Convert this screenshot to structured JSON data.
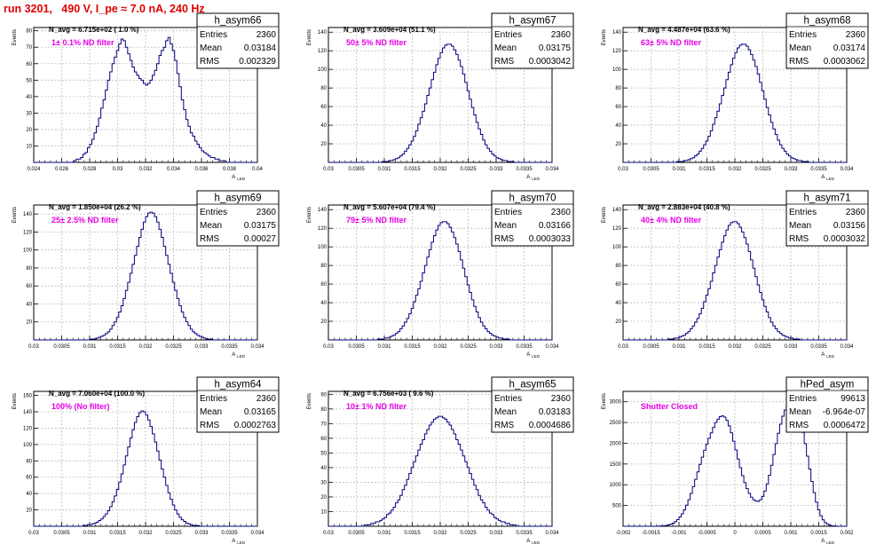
{
  "title": "run 3201,   490 V, I_pe ≈ 7.0 nA, 240 Hz",
  "colors": {
    "histogram": "#00007f",
    "annotation": "#e600e6",
    "title": "#e00000",
    "grid": "#bdbdbd"
  },
  "chart_data": [
    {
      "type": "bar",
      "name": "h_asym66",
      "navg": "N_avg = 6.715e+02 ( 1.0 %)",
      "annotation": "1± 0.1% ND filter",
      "stats": {
        "entries": "2360",
        "mean": "0.03184",
        "rms": "0.002329"
      },
      "xlim": [
        0.024,
        0.04
      ],
      "ylim": [
        0,
        82
      ],
      "xticks": [
        "0.024",
        "0.026",
        "0.028",
        "0.03",
        "0.032",
        "0.034",
        "0.036",
        "0.038",
        "0.04"
      ],
      "yticks": [
        "10",
        "20",
        "30",
        "40",
        "50",
        "60",
        "70",
        "80"
      ],
      "xlabel": "A",
      "xlabel_sub": "LED",
      "ylabel": "Events",
      "bins": 100,
      "values": [
        0,
        0,
        0,
        0,
        0,
        0,
        0,
        0,
        0,
        0,
        0,
        0,
        0,
        0,
        0,
        0,
        0,
        0,
        1,
        2,
        2,
        3,
        5,
        6,
        9,
        11,
        14,
        18,
        22,
        27,
        33,
        38,
        44,
        50,
        55,
        60,
        64,
        68,
        72,
        75,
        74,
        70,
        66,
        62,
        58,
        55,
        53,
        51,
        50,
        48,
        47,
        48,
        50,
        53,
        56,
        60,
        65,
        68,
        70,
        74,
        76,
        72,
        68,
        62,
        54,
        46,
        38,
        32,
        26,
        22,
        18,
        16,
        13,
        11,
        9,
        7,
        6,
        5,
        4,
        3,
        3,
        2,
        2,
        1,
        1,
        1,
        0,
        0,
        0,
        0,
        0,
        0,
        0,
        0,
        0,
        0,
        0,
        0,
        0,
        0
      ]
    },
    {
      "type": "bar",
      "name": "h_asym67",
      "navg": "N_avg = 3.609e+04 (51.1 %)",
      "annotation": "50± 5% ND filter",
      "stats": {
        "entries": "2360",
        "mean": "0.03175",
        "rms": "0.0003042"
      },
      "xlim": [
        0.03,
        0.034
      ],
      "ylim": [
        0,
        145
      ],
      "xticks": [
        "0.03",
        "0.0305",
        "0.031",
        "0.0315",
        "0.032",
        "0.0325",
        "0.033",
        "0.0335",
        "0.034"
      ],
      "yticks": [
        "20",
        "40",
        "60",
        "80",
        "100",
        "120",
        "140"
      ],
      "xlabel": "A",
      "xlabel_sub": "LED",
      "ylabel": "Events",
      "bins": 100,
      "values": [
        0,
        0,
        0,
        0,
        0,
        0,
        0,
        0,
        0,
        0,
        0,
        0,
        0,
        0,
        0,
        0,
        0,
        0,
        0,
        0,
        0,
        0,
        0,
        0,
        1,
        1,
        1,
        2,
        2,
        3,
        4,
        5,
        7,
        9,
        12,
        15,
        19,
        23,
        28,
        34,
        41,
        48,
        55,
        63,
        72,
        80,
        89,
        97,
        105,
        112,
        118,
        123,
        126,
        127,
        127,
        125,
        121,
        116,
        110,
        103,
        95,
        86,
        77,
        68,
        59,
        51,
        43,
        36,
        30,
        24,
        19,
        15,
        12,
        9,
        7,
        5,
        4,
        3,
        2,
        2,
        1,
        1,
        1,
        0,
        0,
        0,
        0,
        0,
        0,
        0,
        0,
        0,
        0,
        0,
        0,
        0,
        0,
        0,
        0,
        0
      ]
    },
    {
      "type": "bar",
      "name": "h_asym68",
      "navg": "N_avg = 4.487e+04 (63.6 %)",
      "annotation": "63± 5% ND filter",
      "stats": {
        "entries": "2360",
        "mean": "0.03174",
        "rms": "0.0003062"
      },
      "xlim": [
        0.03,
        0.034
      ],
      "ylim": [
        0,
        145
      ],
      "xticks": [
        "0.03",
        "0.0305",
        "0.031",
        "0.0315",
        "0.032",
        "0.0325",
        "0.033",
        "0.0335",
        "0.034"
      ],
      "yticks": [
        "20",
        "40",
        "60",
        "80",
        "100",
        "120",
        "140"
      ],
      "xlabel": "A",
      "xlabel_sub": "LED",
      "ylabel": "Events",
      "bins": 100,
      "values": [
        0,
        0,
        0,
        0,
        0,
        0,
        0,
        0,
        0,
        0,
        0,
        0,
        0,
        0,
        0,
        0,
        0,
        0,
        0,
        0,
        0,
        0,
        0,
        0,
        1,
        1,
        1,
        2,
        2,
        3,
        4,
        5,
        7,
        9,
        12,
        15,
        19,
        23,
        28,
        34,
        41,
        48,
        55,
        63,
        72,
        80,
        89,
        97,
        105,
        112,
        118,
        123,
        126,
        127,
        127,
        125,
        121,
        116,
        110,
        103,
        95,
        86,
        77,
        68,
        59,
        51,
        43,
        36,
        30,
        24,
        19,
        15,
        12,
        9,
        7,
        5,
        4,
        3,
        2,
        2,
        1,
        1,
        1,
        0,
        0,
        0,
        0,
        0,
        0,
        0,
        0,
        0,
        0,
        0,
        0,
        0,
        0,
        0,
        0,
        0
      ]
    },
    {
      "type": "bar",
      "name": "h_asym69",
      "navg": "N_avg = 1.850e+04 (26.2 %)",
      "annotation": "25± 2.5% ND filter",
      "stats": {
        "entries": "2360",
        "mean": "0.03175",
        "rms": "0.00027"
      },
      "xlim": [
        0.03,
        0.034
      ],
      "ylim": [
        0,
        150
      ],
      "xticks": [
        "0.03",
        "0.0305",
        "0.031",
        "0.0315",
        "0.032",
        "0.0325",
        "0.033",
        "0.0335",
        "0.034"
      ],
      "yticks": [
        "20",
        "40",
        "60",
        "80",
        "100",
        "120",
        "140"
      ],
      "xlabel": "A",
      "xlabel_sub": "LED",
      "ylabel": "Events",
      "bins": 100,
      "values": [
        0,
        0,
        0,
        0,
        0,
        0,
        0,
        0,
        0,
        0,
        0,
        0,
        0,
        0,
        0,
        0,
        0,
        0,
        0,
        0,
        0,
        0,
        0,
        0,
        0,
        1,
        1,
        1,
        2,
        3,
        4,
        5,
        7,
        9,
        12,
        16,
        20,
        25,
        31,
        38,
        46,
        55,
        64,
        74,
        84,
        94,
        104,
        114,
        123,
        131,
        137,
        141,
        142,
        141,
        137,
        131,
        123,
        114,
        104,
        94,
        84,
        74,
        64,
        55,
        46,
        38,
        31,
        25,
        20,
        16,
        12,
        9,
        7,
        5,
        4,
        3,
        2,
        1,
        1,
        1,
        0,
        0,
        0,
        0,
        0,
        0,
        0,
        0,
        0,
        0,
        0,
        0,
        0,
        0,
        0,
        0,
        0,
        0,
        0,
        0
      ]
    },
    {
      "type": "bar",
      "name": "h_asym70",
      "navg": "N_avg = 5.607e+04 (79.4 %)",
      "annotation": "79± 5% ND filter",
      "stats": {
        "entries": "2360",
        "mean": "0.03166",
        "rms": "0.0003033"
      },
      "xlim": [
        0.03,
        0.034
      ],
      "ylim": [
        0,
        145
      ],
      "xticks": [
        "0.03",
        "0.0305",
        "0.031",
        "0.0315",
        "0.032",
        "0.0325",
        "0.033",
        "0.0335",
        "0.034"
      ],
      "yticks": [
        "20",
        "40",
        "60",
        "80",
        "100",
        "120",
        "140"
      ],
      "xlabel": "A",
      "xlabel_sub": "LED",
      "ylabel": "Events",
      "bins": 100,
      "values": [
        0,
        0,
        0,
        0,
        0,
        0,
        0,
        0,
        0,
        0,
        0,
        0,
        0,
        0,
        0,
        0,
        0,
        0,
        0,
        0,
        0,
        0,
        1,
        1,
        1,
        2,
        2,
        3,
        4,
        5,
        7,
        9,
        12,
        15,
        19,
        23,
        28,
        34,
        41,
        48,
        55,
        63,
        72,
        80,
        89,
        97,
        105,
        112,
        118,
        123,
        126,
        127,
        127,
        125,
        121,
        116,
        110,
        103,
        95,
        86,
        77,
        68,
        59,
        51,
        43,
        36,
        30,
        24,
        19,
        15,
        12,
        9,
        7,
        5,
        4,
        3,
        2,
        2,
        1,
        1,
        1,
        0,
        0,
        0,
        0,
        0,
        0,
        0,
        0,
        0,
        0,
        0,
        0,
        0,
        0,
        0,
        0,
        0,
        0,
        0
      ]
    },
    {
      "type": "bar",
      "name": "h_asym71",
      "navg": "N_avg = 2.883e+04 (40.8 %)",
      "annotation": "40± 4% ND filter",
      "stats": {
        "entries": "2360",
        "mean": "0.03156",
        "rms": "0.0003032"
      },
      "xlim": [
        0.03,
        0.034
      ],
      "ylim": [
        0,
        145
      ],
      "xticks": [
        "0.03",
        "0.0305",
        "0.031",
        "0.0315",
        "0.032",
        "0.0325",
        "0.033",
        "0.0335",
        "0.034"
      ],
      "yticks": [
        "20",
        "40",
        "60",
        "80",
        "100",
        "120",
        "140"
      ],
      "xlabel": "A",
      "xlabel_sub": "LED",
      "ylabel": "Events",
      "bins": 100,
      "values": [
        0,
        0,
        0,
        0,
        0,
        0,
        0,
        0,
        0,
        0,
        0,
        0,
        0,
        0,
        0,
        0,
        0,
        0,
        0,
        0,
        1,
        1,
        1,
        2,
        2,
        3,
        4,
        5,
        7,
        9,
        12,
        15,
        19,
        23,
        28,
        34,
        41,
        48,
        55,
        63,
        72,
        80,
        89,
        97,
        105,
        112,
        118,
        123,
        126,
        127,
        127,
        125,
        121,
        116,
        110,
        103,
        95,
        86,
        77,
        68,
        59,
        51,
        43,
        36,
        30,
        24,
        19,
        15,
        12,
        9,
        7,
        5,
        4,
        3,
        2,
        2,
        1,
        1,
        1,
        0,
        0,
        0,
        0,
        0,
        0,
        0,
        0,
        0,
        0,
        0,
        0,
        0,
        0,
        0,
        0,
        0,
        0,
        0,
        0,
        0
      ]
    },
    {
      "type": "bar",
      "name": "h_asym64",
      "navg": "N_avg = 7.060e+04 (100.0 %)",
      "annotation": "100% (No filter)",
      "stats": {
        "entries": "2360",
        "mean": "0.03165",
        "rms": "0.0002763"
      },
      "xlim": [
        0.03,
        0.034
      ],
      "ylim": [
        0,
        165
      ],
      "xticks": [
        "0.03",
        "0.0305",
        "0.031",
        "0.0315",
        "0.032",
        "0.0325",
        "0.033",
        "0.0335",
        "0.034"
      ],
      "yticks": [
        "20",
        "40",
        "60",
        "80",
        "100",
        "120",
        "140",
        "160"
      ],
      "xlabel": "A",
      "xlabel_sub": "LED",
      "ylabel": "Events",
      "bins": 100,
      "values": [
        0,
        0,
        0,
        0,
        0,
        0,
        0,
        0,
        0,
        0,
        0,
        0,
        0,
        0,
        0,
        0,
        0,
        0,
        0,
        0,
        0,
        0,
        1,
        1,
        2,
        2,
        3,
        4,
        5,
        7,
        9,
        12,
        15,
        19,
        24,
        30,
        37,
        45,
        54,
        64,
        75,
        86,
        97,
        108,
        118,
        127,
        134,
        139,
        141,
        140,
        136,
        130,
        122,
        113,
        103,
        92,
        81,
        70,
        60,
        50,
        41,
        33,
        26,
        20,
        15,
        11,
        8,
        6,
        4,
        3,
        2,
        1,
        1,
        1,
        0,
        0,
        0,
        0,
        0,
        0,
        0,
        0,
        0,
        0,
        0,
        0,
        0,
        0,
        0,
        0,
        0,
        0,
        0,
        0,
        0,
        0,
        0,
        0,
        0,
        0
      ]
    },
    {
      "type": "bar",
      "name": "h_asym65",
      "navg": "N_avg = 6.756e+03 ( 9.6 %)",
      "annotation": "10± 1% ND filter",
      "stats": {
        "entries": "2360",
        "mean": "0.03183",
        "rms": "0.0004686"
      },
      "xlim": [
        0.03,
        0.034
      ],
      "ylim": [
        0,
        92
      ],
      "xticks": [
        "0.03",
        "0.0305",
        "0.031",
        "0.0315",
        "0.032",
        "0.0325",
        "0.033",
        "0.0335",
        "0.034"
      ],
      "yticks": [
        "10",
        "20",
        "30",
        "40",
        "50",
        "60",
        "70",
        "80",
        "90"
      ],
      "xlabel": "A",
      "xlabel_sub": "LED",
      "ylabel": "Events",
      "bins": 100,
      "values": [
        0,
        0,
        0,
        0,
        0,
        0,
        0,
        0,
        0,
        0,
        0,
        0,
        0,
        0,
        0,
        0,
        1,
        1,
        1,
        2,
        2,
        3,
        3,
        4,
        5,
        6,
        8,
        9,
        11,
        13,
        16,
        18,
        21,
        25,
        28,
        32,
        36,
        40,
        44,
        48,
        52,
        56,
        59,
        63,
        66,
        69,
        71,
        73,
        74,
        75,
        75,
        74,
        73,
        71,
        69,
        66,
        63,
        59,
        56,
        52,
        48,
        44,
        40,
        36,
        32,
        28,
        25,
        21,
        18,
        16,
        13,
        11,
        9,
        8,
        6,
        5,
        4,
        3,
        3,
        2,
        2,
        1,
        1,
        1,
        0,
        0,
        0,
        0,
        0,
        0,
        0,
        0,
        0,
        0,
        0,
        0,
        0,
        0,
        0,
        0
      ]
    },
    {
      "type": "bar",
      "name": "hPed_asym",
      "navg": "",
      "annotation": "Shutter Closed",
      "stats": {
        "entries": "99613",
        "mean": "-6.964e-07",
        "rms": "0.0006472"
      },
      "xlim": [
        -0.002,
        0.002
      ],
      "ylim": [
        0,
        3250
      ],
      "xticks": [
        "-0.002",
        "-0.0015",
        "-0.001",
        "-0.0005",
        "0",
        "0.0005",
        "0.001",
        "0.0015",
        "0.002"
      ],
      "yticks": [
        "500",
        "1000",
        "1500",
        "2000",
        "2500",
        "3000"
      ],
      "xlabel": "A",
      "xlabel_sub": "LED",
      "ylabel": "Events",
      "bins": 100,
      "values": [
        0,
        0,
        0,
        0,
        0,
        0,
        0,
        0,
        0,
        0,
        0,
        0,
        0,
        0,
        1,
        2,
        4,
        7,
        12,
        20,
        32,
        50,
        76,
        112,
        160,
        222,
        300,
        395,
        508,
        640,
        790,
        955,
        1130,
        1310,
        1490,
        1665,
        1830,
        1980,
        2120,
        2250,
        2380,
        2500,
        2580,
        2640,
        2660,
        2630,
        2550,
        2420,
        2250,
        2050,
        1840,
        1620,
        1410,
        1220,
        1050,
        905,
        790,
        700,
        640,
        610,
        600,
        640,
        720,
        850,
        1020,
        1230,
        1470,
        1730,
        1990,
        2240,
        2460,
        2650,
        2800,
        2900,
        2950,
        2960,
        2920,
        2830,
        2690,
        2500,
        2260,
        1990,
        1690,
        1380,
        1080,
        810,
        580,
        395,
        255,
        155,
        88,
        47,
        23,
        11,
        5,
        2,
        1,
        0,
        0,
        0
      ]
    }
  ]
}
